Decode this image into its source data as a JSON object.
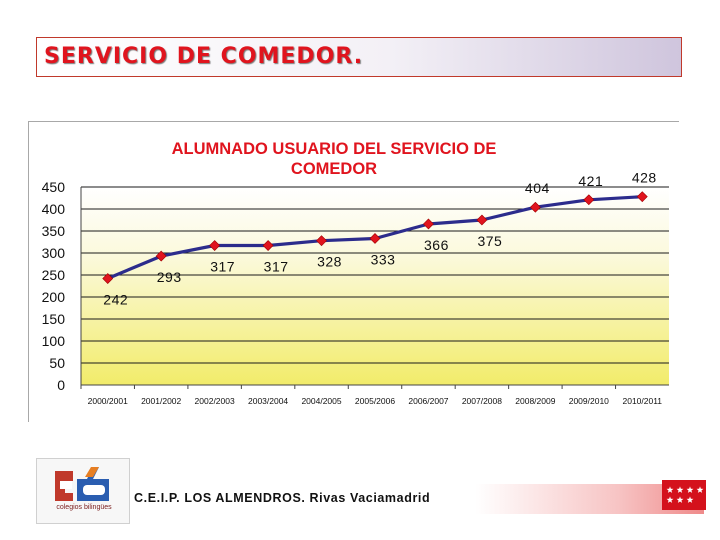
{
  "slide": {
    "title": "SERVICIO DE COMEDOR."
  },
  "chart_data": {
    "type": "line",
    "title": "ALUMNADO USUARIO DEL SERVICIO DE COMEDOR",
    "categories": [
      "2000/2001",
      "2001/2002",
      "2002/2003",
      "2003/2004",
      "2004/2005",
      "2005/2006",
      "2006/2007",
      "2007/2008",
      "2008/2009",
      "2009/2010",
      "2010/2011"
    ],
    "values": [
      242,
      293,
      317,
      317,
      328,
      333,
      366,
      375,
      404,
      421,
      428
    ],
    "ylim": [
      0,
      450
    ],
    "yticks": [
      0,
      50,
      100,
      150,
      200,
      250,
      300,
      350,
      400,
      450
    ],
    "grid": true,
    "legend": "none",
    "line_color": "#2c2c8c",
    "marker_color": "#e0141e"
  },
  "footer": {
    "school": "C.E.I.P. LOS ALMENDROS. Rivas Vaciamadrid",
    "logo_caption": "colegios bilingües"
  }
}
